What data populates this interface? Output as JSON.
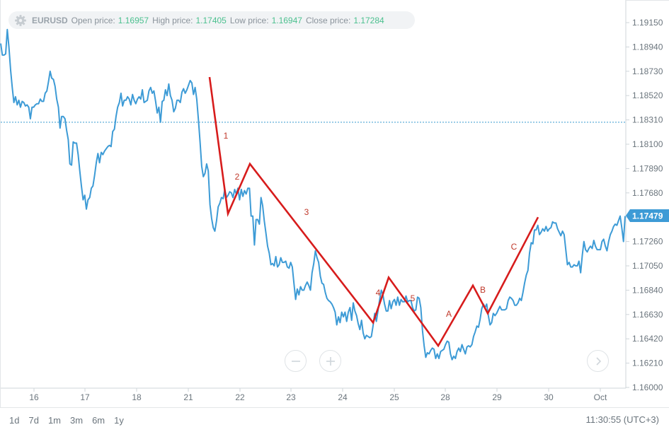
{
  "ohlc_bar": {
    "symbol": "EURUSD",
    "open_label": "Open price:",
    "open_value": "1.16957",
    "high_label": "High price:",
    "high_value": "1.17405",
    "low_label": "Low price:",
    "low_value": "1.16947",
    "close_label": "Close price:",
    "close_value": "1.17284",
    "settings_icon": "gear-icon"
  },
  "range_buttons": [
    "1d",
    "7d",
    "1m",
    "3m",
    "6m",
    "1y"
  ],
  "clock": "11:30:55 (UTC+3)",
  "zoom_controls": {
    "zoom_out_icon": "minus-icon",
    "zoom_in_icon": "plus-icon",
    "scroll_icon": "chevron-right-icon"
  },
  "colors": {
    "price_line": "#3d9bd6",
    "wave_line": "#d71c1c",
    "wave_labels": "#c0392b",
    "current_price_bg": "#3d9bd6",
    "dotted_level": "#5eaed8"
  },
  "chart_data": {
    "type": "line",
    "symbol": "EURUSD",
    "x_ticks": [
      "16",
      "17",
      "18",
      "21",
      "22",
      "23",
      "24",
      "25",
      "28",
      "29",
      "30",
      "Oct"
    ],
    "y_ticks": [
      "1.19150",
      "1.18940",
      "1.18730",
      "1.18520",
      "1.18310",
      "1.18100",
      "1.17890",
      "1.17680",
      "1.17470",
      "1.17260",
      "1.17050",
      "1.16840",
      "1.16630",
      "1.16420",
      "1.16210",
      "1.16000"
    ],
    "ylim": [
      1.16,
      1.1922
    ],
    "current_price": "1.17479",
    "horizontal_level": 1.1829,
    "series": [
      {
        "values": [
          1.1897,
          1.1887,
          1.1887,
          1.1888,
          1.1909,
          1.1894,
          1.1874,
          1.1859,
          1.1846,
          1.1851,
          1.1844,
          1.1848,
          1.1842,
          1.1847,
          1.1846,
          1.1843,
          1.1844,
          1.1842,
          1.1832,
          1.1842,
          1.1842,
          1.1844,
          1.1845,
          1.1845,
          1.1849,
          1.1847,
          1.1847,
          1.1854,
          1.1856,
          1.1864,
          1.1873,
          1.1867,
          1.1866,
          1.186,
          1.1849,
          1.1842,
          1.1824,
          1.1834,
          1.1834,
          1.1832,
          1.1822,
          1.1814,
          1.1793,
          1.1792,
          1.1812,
          1.1811,
          1.1811,
          1.1801,
          1.1787,
          1.1774,
          1.1762,
          1.1766,
          1.1754,
          1.1762,
          1.1764,
          1.1772,
          1.1774,
          1.1783,
          1.1794,
          1.1802,
          1.1794,
          1.1803,
          1.1801,
          1.1804,
          1.1806,
          1.1808,
          1.1809,
          1.1808,
          1.1821,
          1.1823,
          1.1834,
          1.1842,
          1.1846,
          1.1854,
          1.1843,
          1.1848,
          1.1848,
          1.1851,
          1.1849,
          1.1844,
          1.1853,
          1.1848,
          1.1845,
          1.1849,
          1.1851,
          1.1849,
          1.1857,
          1.1846,
          1.1847,
          1.1848,
          1.1856,
          1.1859,
          1.1854,
          1.1856,
          1.1847,
          1.1837,
          1.1842,
          1.1829,
          1.1847,
          1.1848,
          1.1857,
          1.1852,
          1.1862,
          1.1852,
          1.1848,
          1.1838,
          1.1841,
          1.1848,
          1.1848,
          1.1846,
          1.1855,
          1.1858,
          1.1854,
          1.1857,
          1.1861,
          1.1865,
          1.1863,
          1.1853,
          1.1859,
          1.1849,
          1.1831,
          1.1812,
          1.1791,
          1.1782,
          1.1785,
          1.1793,
          1.1787,
          1.1758,
          1.1746,
          1.1738,
          1.1735,
          1.1744,
          1.1756,
          1.1759,
          1.1764,
          1.1763,
          1.1771,
          1.1764,
          1.1766,
          1.1769,
          1.1768,
          1.1764,
          1.1771,
          1.1767,
          1.1772,
          1.1762,
          1.1771,
          1.1765,
          1.177,
          1.1767,
          1.1772,
          1.1772,
          1.1748,
          1.1748,
          1.1723,
          1.1745,
          1.1745,
          1.1741,
          1.1764,
          1.1757,
          1.1744,
          1.1733,
          1.1722,
          1.1716,
          1.1706,
          1.1707,
          1.1705,
          1.1713,
          1.1704,
          1.1706,
          1.1712,
          1.1708,
          1.1708,
          1.1709,
          1.1704,
          1.1703,
          1.1708,
          1.1704,
          1.169,
          1.1676,
          1.1685,
          1.168,
          1.1687,
          1.1684,
          1.1684,
          1.1688,
          1.1691,
          1.1688,
          1.1684,
          1.1699,
          1.1707,
          1.1718,
          1.1712,
          1.1708,
          1.1696,
          1.169,
          1.1689,
          1.1682,
          1.1677,
          1.1675,
          1.1674,
          1.1672,
          1.1669,
          1.1665,
          1.1654,
          1.1661,
          1.1656,
          1.1665,
          1.1661,
          1.1665,
          1.1657,
          1.1665,
          1.1669,
          1.1658,
          1.1673,
          1.1666,
          1.1662,
          1.1655,
          1.165,
          1.1658,
          1.1647,
          1.1642,
          1.1645,
          1.1644,
          1.1643,
          1.1644,
          1.1653,
          1.1664,
          1.1657,
          1.1666,
          1.1676,
          1.1684,
          1.168,
          1.1672,
          1.1666,
          1.1666,
          1.1675,
          1.1668,
          1.1674,
          1.1676,
          1.1671,
          1.1678,
          1.1671,
          1.1676,
          1.1674,
          1.1674,
          1.1679,
          1.1674,
          1.1675,
          1.1675,
          1.1669,
          1.1666,
          1.1667,
          1.1678,
          1.1677,
          1.1669,
          1.1649,
          1.1636,
          1.1626,
          1.163,
          1.1629,
          1.1632,
          1.1634,
          1.1633,
          1.1625,
          1.1629,
          1.1625,
          1.1631,
          1.1632,
          1.1633,
          1.1637,
          1.164,
          1.1639,
          1.1629,
          1.1624,
          1.1627,
          1.1625,
          1.1631,
          1.1634,
          1.1631,
          1.1637,
          1.1633,
          1.1629,
          1.1635,
          1.1636,
          1.1635,
          1.1637,
          1.1644,
          1.1648,
          1.1653,
          1.1652,
          1.1659,
          1.1668,
          1.1672,
          1.1669,
          1.1672,
          1.1662,
          1.1654,
          1.1656,
          1.1664,
          1.1662,
          1.1664,
          1.1667,
          1.167,
          1.1667,
          1.1667,
          1.1667,
          1.1668,
          1.1675,
          1.1678,
          1.1677,
          1.1675,
          1.1671,
          1.1671,
          1.1673,
          1.1677,
          1.1675,
          1.1682,
          1.169,
          1.1697,
          1.1701,
          1.1716,
          1.1725,
          1.1724,
          1.1736,
          1.1736,
          1.174,
          1.1732,
          1.1734,
          1.1737,
          1.1735,
          1.1739,
          1.1735,
          1.1737,
          1.1738,
          1.1743,
          1.1742,
          1.1742,
          1.1737,
          1.1734,
          1.1731,
          1.1735,
          1.1732,
          1.1719,
          1.1706,
          1.1708,
          1.1704,
          1.1704,
          1.1706,
          1.1705,
          1.1705,
          1.1709,
          1.1699,
          1.1714,
          1.1726,
          1.1719,
          1.1717,
          1.172,
          1.1722,
          1.172,
          1.1727,
          1.1722,
          1.1719,
          1.1719,
          1.1719,
          1.1726,
          1.1728,
          1.1722,
          1.1718,
          1.1726,
          1.1732,
          1.1735,
          1.1739,
          1.1741,
          1.174,
          1.1744,
          1.1748,
          1.1738,
          1.1726,
          1.1748
        ]
      }
    ],
    "wave_annotation": {
      "points": [
        {
          "x": "21",
          "y": 1.1868
        },
        {
          "x": "21",
          "y": 1.175
        },
        {
          "x": "22",
          "y": 1.1793
        },
        {
          "x": "24",
          "y": 1.1656
        },
        {
          "x": "24",
          "y": 1.1695
        },
        {
          "x": "25",
          "y": 1.1636
        },
        {
          "x": "28",
          "y": 1.1688
        },
        {
          "x": "29",
          "y": 1.1664
        },
        {
          "x": "29",
          "y": 1.1747
        }
      ],
      "labels": [
        "1",
        "2",
        "3",
        "4",
        "5",
        "A",
        "B",
        "C"
      ]
    }
  }
}
